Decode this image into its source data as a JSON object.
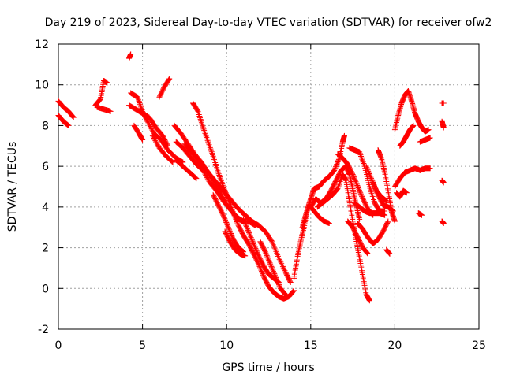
{
  "chart_data": {
    "type": "scatter",
    "title": "Day 219 of 2023, Sidereal Day-to-day VTEC variation (SDTVAR) for receiver ofw2",
    "xlabel": "GPS time / hours",
    "ylabel": "SDTVAR / TECUs",
    "xlim": [
      0,
      25
    ],
    "ylim": [
      -2,
      12
    ],
    "x_ticks": [
      "0",
      "5",
      "10",
      "15",
      "20",
      "25"
    ],
    "y_ticks": [
      "-2",
      "0",
      "2",
      "4",
      "6",
      "8",
      "10",
      "12"
    ],
    "grid": true,
    "marker": "+",
    "color": "#ff0000",
    "segments": [
      {
        "points": [
          [
            0.0,
            9.2
          ],
          [
            0.3,
            8.9
          ],
          [
            0.6,
            8.7
          ],
          [
            0.9,
            8.4
          ]
        ]
      },
      {
        "points": [
          [
            0.0,
            8.5
          ],
          [
            0.3,
            8.2
          ],
          [
            0.6,
            8.0
          ]
        ]
      },
      {
        "points": [
          [
            2.2,
            9.0
          ],
          [
            2.5,
            9.3
          ],
          [
            2.7,
            10.2
          ],
          [
            2.9,
            10.1
          ]
        ]
      },
      {
        "points": [
          [
            2.3,
            8.9
          ],
          [
            2.7,
            8.8
          ],
          [
            3.1,
            8.7
          ]
        ]
      },
      {
        "points": [
          [
            4.2,
            11.3
          ],
          [
            4.3,
            11.5
          ]
        ]
      },
      {
        "points": [
          [
            4.3,
            9.6
          ],
          [
            4.7,
            9.4
          ],
          [
            5.0,
            8.7
          ],
          [
            5.3,
            8.2
          ],
          [
            5.7,
            7.6
          ],
          [
            6.1,
            7.3
          ],
          [
            6.5,
            6.8
          ],
          [
            7.0,
            6.4
          ],
          [
            7.4,
            6.2
          ]
        ]
      },
      {
        "points": [
          [
            4.2,
            9.0
          ],
          [
            4.6,
            8.8
          ],
          [
            5.0,
            8.6
          ],
          [
            5.4,
            8.4
          ],
          [
            5.8,
            7.9
          ],
          [
            6.2,
            7.5
          ],
          [
            6.5,
            7.0
          ]
        ]
      },
      {
        "points": [
          [
            4.5,
            8.0
          ],
          [
            4.8,
            7.6
          ],
          [
            5.0,
            7.3
          ]
        ]
      },
      {
        "points": [
          [
            5.6,
            7.5
          ],
          [
            6.0,
            6.9
          ],
          [
            6.4,
            6.5
          ],
          [
            6.8,
            6.2
          ]
        ]
      },
      {
        "points": [
          [
            6.0,
            9.4
          ],
          [
            6.3,
            9.9
          ],
          [
            6.6,
            10.3
          ]
        ]
      },
      {
        "points": [
          [
            6.9,
            8.0
          ],
          [
            7.3,
            7.6
          ],
          [
            7.7,
            7.1
          ],
          [
            8.1,
            6.6
          ],
          [
            8.5,
            6.2
          ],
          [
            8.9,
            5.7
          ],
          [
            9.3,
            5.1
          ],
          [
            9.7,
            4.6
          ],
          [
            10.1,
            4.0
          ],
          [
            10.5,
            3.6
          ],
          [
            10.9,
            3.3
          ],
          [
            11.3,
            3.3
          ],
          [
            11.7,
            3.1
          ]
        ]
      },
      {
        "points": [
          [
            7.0,
            7.2
          ],
          [
            7.4,
            6.9
          ],
          [
            7.8,
            6.5
          ],
          [
            8.2,
            6.1
          ],
          [
            8.6,
            5.8
          ],
          [
            9.0,
            5.2
          ],
          [
            9.4,
            4.8
          ],
          [
            9.8,
            4.3
          ],
          [
            10.2,
            3.9
          ],
          [
            10.6,
            3.5
          ],
          [
            11.0,
            3.3
          ]
        ]
      },
      {
        "points": [
          [
            7.5,
            7.1
          ],
          [
            7.9,
            6.7
          ],
          [
            8.3,
            6.3
          ],
          [
            8.7,
            5.9
          ],
          [
            9.1,
            5.5
          ],
          [
            9.5,
            5.1
          ],
          [
            9.9,
            4.7
          ],
          [
            10.3,
            4.3
          ],
          [
            10.7,
            3.9
          ],
          [
            11.1,
            3.6
          ],
          [
            11.5,
            3.3
          ],
          [
            11.9,
            3.1
          ],
          [
            12.3,
            2.8
          ],
          [
            12.7,
            2.3
          ],
          [
            13.1,
            1.5
          ],
          [
            13.5,
            0.8
          ],
          [
            13.8,
            0.3
          ]
        ]
      },
      {
        "points": [
          [
            7.0,
            6.3
          ],
          [
            7.4,
            6.0
          ],
          [
            7.8,
            5.7
          ],
          [
            8.2,
            5.4
          ]
        ]
      },
      {
        "points": [
          [
            8.0,
            9.1
          ],
          [
            8.3,
            8.7
          ],
          [
            8.6,
            7.9
          ],
          [
            8.9,
            7.2
          ],
          [
            9.2,
            6.5
          ],
          [
            9.5,
            5.7
          ],
          [
            9.8,
            5.0
          ],
          [
            10.1,
            4.4
          ],
          [
            10.4,
            3.7
          ],
          [
            10.7,
            3.1
          ],
          [
            11.0,
            2.6
          ],
          [
            11.3,
            2.2
          ],
          [
            11.6,
            1.7
          ],
          [
            11.9,
            1.2
          ],
          [
            12.2,
            0.6
          ],
          [
            12.5,
            0.1
          ],
          [
            12.8,
            -0.2
          ],
          [
            13.1,
            -0.4
          ],
          [
            13.4,
            -0.5
          ],
          [
            13.7,
            -0.4
          ],
          [
            14.0,
            -0.1
          ]
        ]
      },
      {
        "points": [
          [
            9.2,
            4.6
          ],
          [
            9.5,
            4.1
          ],
          [
            9.8,
            3.6
          ],
          [
            10.1,
            3.0
          ],
          [
            10.4,
            2.4
          ],
          [
            10.7,
            2.0
          ],
          [
            11.0,
            1.8
          ]
        ]
      },
      {
        "points": [
          [
            9.9,
            2.8
          ],
          [
            10.2,
            2.3
          ],
          [
            10.5,
            1.9
          ],
          [
            10.8,
            1.7
          ],
          [
            11.1,
            1.6
          ]
        ]
      },
      {
        "points": [
          [
            11.0,
            3.4
          ],
          [
            11.3,
            2.8
          ],
          [
            11.6,
            2.2
          ],
          [
            11.9,
            1.6
          ],
          [
            12.2,
            1.1
          ],
          [
            12.5,
            0.7
          ],
          [
            12.8,
            0.5
          ],
          [
            13.1,
            0.3
          ]
        ]
      },
      {
        "points": [
          [
            12.0,
            2.3
          ],
          [
            12.3,
            1.8
          ],
          [
            12.6,
            1.2
          ],
          [
            12.9,
            0.6
          ],
          [
            13.2,
            0.0
          ],
          [
            13.5,
            -0.3
          ]
        ]
      },
      {
        "points": [
          [
            14.0,
            0.5
          ],
          [
            14.2,
            1.5
          ],
          [
            14.4,
            2.3
          ],
          [
            14.6,
            3.0
          ],
          [
            14.8,
            3.9
          ],
          [
            15.0,
            4.4
          ],
          [
            15.2,
            4.9
          ],
          [
            15.5,
            5.0
          ],
          [
            15.8,
            5.3
          ],
          [
            16.1,
            5.5
          ],
          [
            16.4,
            5.8
          ],
          [
            16.7,
            6.4
          ],
          [
            16.9,
            7.2
          ],
          [
            17.0,
            7.5
          ]
        ]
      },
      {
        "points": [
          [
            14.5,
            3.0
          ],
          [
            14.7,
            3.6
          ],
          [
            14.9,
            4.1
          ],
          [
            15.2,
            3.8
          ],
          [
            15.5,
            3.5
          ],
          [
            15.8,
            3.3
          ],
          [
            16.1,
            3.2
          ]
        ]
      },
      {
        "points": [
          [
            15.0,
            4.0
          ],
          [
            15.3,
            4.4
          ],
          [
            15.6,
            4.2
          ],
          [
            15.9,
            4.4
          ],
          [
            16.2,
            4.8
          ],
          [
            16.5,
            5.3
          ],
          [
            16.8,
            5.8
          ],
          [
            17.1,
            6.0
          ],
          [
            17.3,
            5.6
          ],
          [
            17.5,
            4.9
          ],
          [
            17.7,
            4.1
          ],
          [
            17.9,
            3.4
          ]
        ]
      },
      {
        "points": [
          [
            15.4,
            4.0
          ],
          [
            15.7,
            4.2
          ],
          [
            16.0,
            4.4
          ],
          [
            16.3,
            4.6
          ],
          [
            16.6,
            4.9
          ],
          [
            16.9,
            5.6
          ],
          [
            17.1,
            5.3
          ],
          [
            17.3,
            4.3
          ],
          [
            17.5,
            3.3
          ],
          [
            17.7,
            2.4
          ],
          [
            17.9,
            1.5
          ],
          [
            18.1,
            0.6
          ],
          [
            18.3,
            -0.3
          ],
          [
            18.5,
            -0.6
          ]
        ]
      },
      {
        "points": [
          [
            16.6,
            6.6
          ],
          [
            16.9,
            6.4
          ],
          [
            17.2,
            6.1
          ],
          [
            17.5,
            5.6
          ],
          [
            17.8,
            5.0
          ],
          [
            18.1,
            4.4
          ],
          [
            18.4,
            3.9
          ],
          [
            18.7,
            3.6
          ]
        ]
      },
      {
        "points": [
          [
            17.2,
            3.3
          ],
          [
            17.5,
            3.0
          ],
          [
            17.8,
            2.5
          ],
          [
            18.1,
            2.0
          ],
          [
            18.4,
            1.7
          ]
        ]
      },
      {
        "points": [
          [
            17.3,
            6.9
          ],
          [
            17.6,
            6.8
          ],
          [
            17.9,
            6.7
          ],
          [
            18.2,
            6.0
          ],
          [
            18.5,
            5.0
          ],
          [
            18.8,
            4.2
          ],
          [
            19.1,
            3.8
          ],
          [
            19.4,
            3.8
          ]
        ]
      },
      {
        "points": [
          [
            17.6,
            4.2
          ],
          [
            17.9,
            4.0
          ],
          [
            18.2,
            3.8
          ],
          [
            18.5,
            3.7
          ],
          [
            18.8,
            3.7
          ],
          [
            19.1,
            3.7
          ],
          [
            19.4,
            3.6
          ]
        ]
      },
      {
        "points": [
          [
            17.8,
            3.2
          ],
          [
            18.1,
            2.9
          ],
          [
            18.4,
            2.5
          ],
          [
            18.7,
            2.2
          ],
          [
            19.0,
            2.4
          ],
          [
            19.3,
            2.8
          ],
          [
            19.6,
            3.3
          ]
        ]
      },
      {
        "points": [
          [
            18.3,
            6.0
          ],
          [
            18.6,
            5.4
          ],
          [
            18.9,
            4.8
          ],
          [
            19.2,
            4.5
          ],
          [
            19.5,
            4.3
          ]
        ]
      },
      {
        "points": [
          [
            18.7,
            5.2
          ],
          [
            19.0,
            4.6
          ],
          [
            19.3,
            4.1
          ],
          [
            19.6,
            4.0
          ],
          [
            19.9,
            3.8
          ]
        ]
      },
      {
        "points": [
          [
            19.0,
            6.8
          ],
          [
            19.2,
            6.4
          ],
          [
            19.4,
            5.7
          ],
          [
            19.6,
            4.8
          ],
          [
            19.8,
            3.8
          ],
          [
            20.0,
            3.3
          ]
        ]
      },
      {
        "points": [
          [
            19.5,
            1.9
          ],
          [
            19.7,
            1.7
          ]
        ]
      },
      {
        "points": [
          [
            20.0,
            7.8
          ],
          [
            20.2,
            8.5
          ],
          [
            20.4,
            9.1
          ],
          [
            20.6,
            9.5
          ],
          [
            20.8,
            9.7
          ],
          [
            21.0,
            9.2
          ],
          [
            21.2,
            8.6
          ],
          [
            21.4,
            8.2
          ],
          [
            21.6,
            7.9
          ],
          [
            21.8,
            7.7
          ],
          [
            22.0,
            7.8
          ]
        ]
      },
      {
        "points": [
          [
            20.3,
            7.0
          ],
          [
            20.5,
            7.2
          ],
          [
            20.7,
            7.5
          ],
          [
            20.9,
            7.8
          ],
          [
            21.1,
            8.0
          ]
        ]
      },
      {
        "points": [
          [
            20.0,
            5.0
          ],
          [
            20.3,
            5.4
          ],
          [
            20.6,
            5.7
          ],
          [
            20.9,
            5.8
          ],
          [
            21.2,
            5.9
          ],
          [
            21.5,
            5.8
          ],
          [
            21.8,
            5.9
          ],
          [
            22.1,
            5.9
          ]
        ]
      },
      {
        "points": [
          [
            20.1,
            4.7
          ],
          [
            20.3,
            4.5
          ],
          [
            20.5,
            4.8
          ],
          [
            20.7,
            4.7
          ]
        ]
      },
      {
        "points": [
          [
            21.4,
            3.7
          ],
          [
            21.6,
            3.6
          ]
        ]
      },
      {
        "points": [
          [
            21.5,
            7.2
          ],
          [
            21.8,
            7.3
          ],
          [
            22.1,
            7.4
          ]
        ]
      },
      {
        "points": [
          [
            22.8,
            9.1
          ],
          [
            22.9,
            9.1
          ]
        ]
      },
      {
        "points": [
          [
            22.8,
            8.2
          ],
          [
            22.9,
            7.9
          ]
        ]
      },
      {
        "points": [
          [
            22.8,
            5.3
          ],
          [
            22.9,
            5.2
          ]
        ]
      },
      {
        "points": [
          [
            22.8,
            3.3
          ],
          [
            22.9,
            3.2
          ]
        ]
      }
    ]
  }
}
